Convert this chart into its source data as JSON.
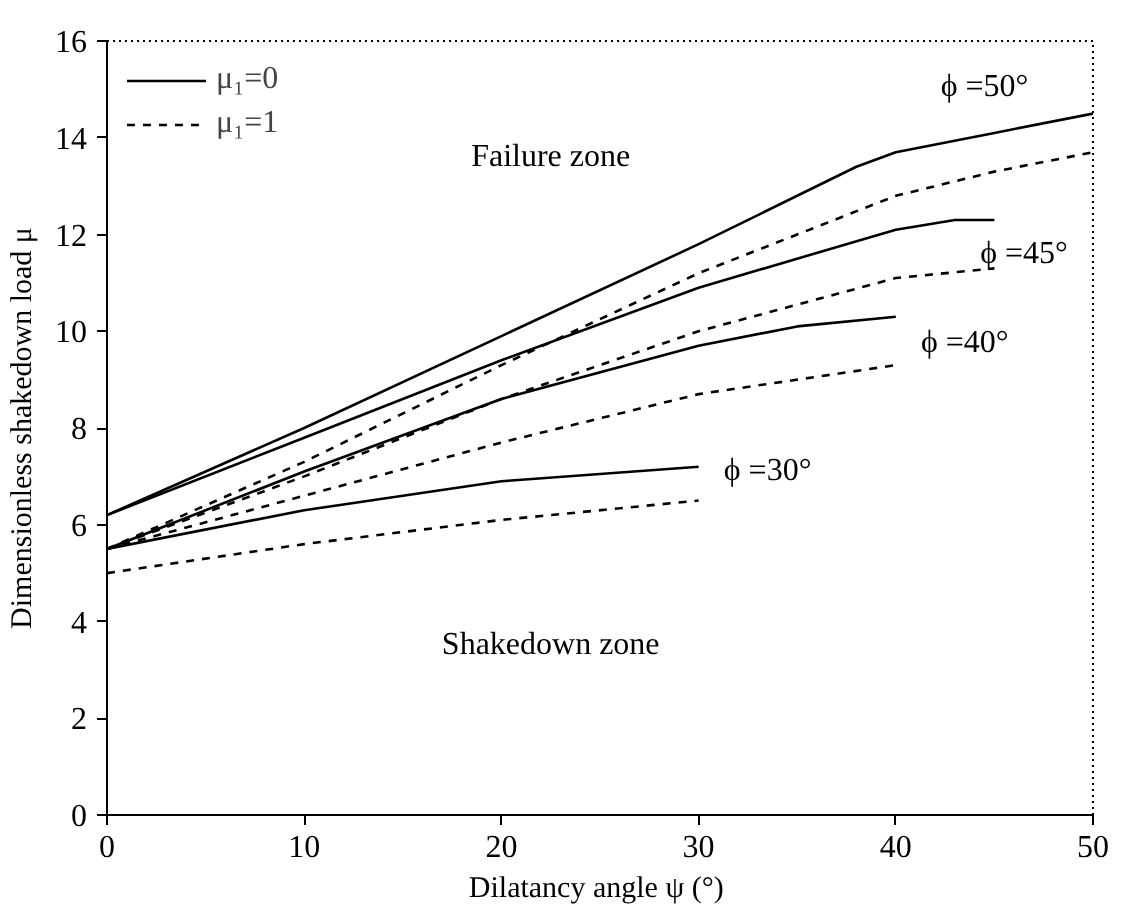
{
  "chart_data": {
    "type": "line",
    "xlabel": "Dilatancy angle  ψ (°)",
    "ylabel": "Dimensionless shakedown load μ",
    "xlim": [
      0,
      50
    ],
    "ylim": [
      0,
      16
    ],
    "xticks": [
      0,
      10,
      20,
      30,
      40,
      50
    ],
    "yticks": [
      0,
      2,
      4,
      6,
      8,
      10,
      12,
      14,
      16
    ],
    "grid": false,
    "legend": "top left",
    "marker": "none",
    "series": [
      {
        "name": "μ₁=0",
        "color": "#000000",
        "line_style": "solid",
        "x": [
          0,
          10,
          20,
          30,
          38,
          40,
          45,
          50
        ],
        "values": [
          6.2,
          8.0,
          9.9,
          11.8,
          13.4,
          13.7,
          14.1,
          14.5
        ]
      },
      {
        "name": "μ₁=1",
        "color": "#000000",
        "line_style": "dashed",
        "x": [
          0,
          10,
          20,
          30,
          40,
          45,
          50
        ],
        "values": [
          5.5,
          7.3,
          9.3,
          11.2,
          12.8,
          13.3,
          13.7
        ]
      },
      {
        "color": "#000000",
        "line_style": "solid",
        "x": [
          0,
          10,
          20,
          30,
          40,
          43,
          45
        ],
        "values": [
          6.2,
          7.8,
          9.4,
          10.9,
          12.1,
          12.3,
          12.3
        ]
      },
      {
        "color": "#000000",
        "line_style": "dashed",
        "x": [
          0,
          10,
          20,
          30,
          40,
          45
        ],
        "values": [
          5.5,
          7.0,
          8.6,
          10.0,
          11.1,
          11.3
        ]
      },
      {
        "color": "#000000",
        "line_style": "solid",
        "x": [
          0,
          10,
          20,
          30,
          35,
          40
        ],
        "values": [
          5.5,
          7.1,
          8.6,
          9.7,
          10.1,
          10.3
        ]
      },
      {
        "color": "#000000",
        "line_style": "dashed",
        "x": [
          0,
          10,
          20,
          30,
          40
        ],
        "values": [
          5.5,
          6.6,
          7.7,
          8.7,
          9.3
        ]
      },
      {
        "color": "#000000",
        "line_style": "solid",
        "x": [
          0,
          10,
          20,
          30
        ],
        "values": [
          5.5,
          6.3,
          6.9,
          7.2
        ]
      },
      {
        "color": "#000000",
        "line_style": "dashed",
        "x": [
          0,
          10,
          20,
          30
        ],
        "values": [
          5.0,
          5.6,
          6.1,
          6.5
        ]
      }
    ],
    "annotations": [
      "ϕ =50°",
      "ϕ =45°",
      "ϕ =40°",
      "ϕ =30°",
      "Failure zone",
      "Shakedown zone"
    ]
  }
}
